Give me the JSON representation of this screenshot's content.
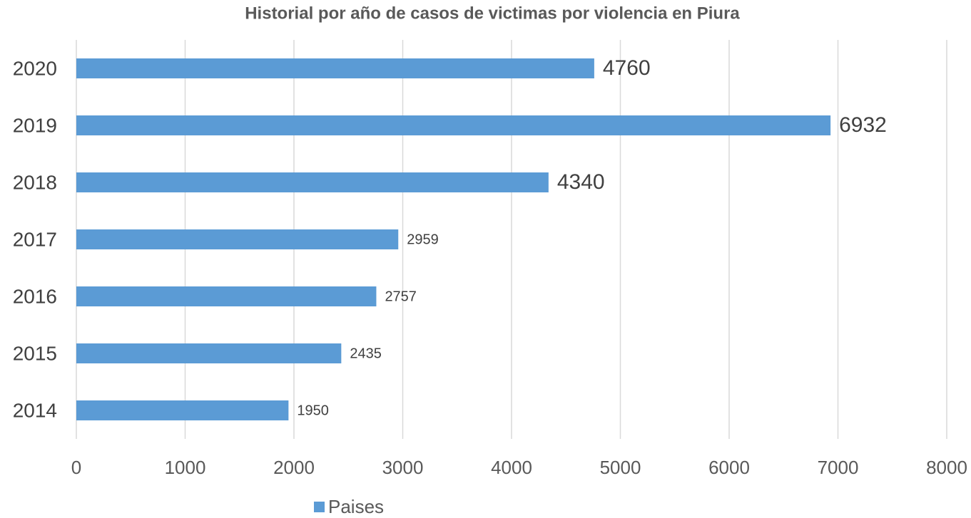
{
  "chart_data": {
    "type": "bar",
    "orientation": "horizontal",
    "title": "Historial por año de casos de victimas por violencia en Piura",
    "categories": [
      "2014",
      "2015",
      "2016",
      "2017",
      "2018",
      "2019",
      "2020"
    ],
    "series": [
      {
        "name": "Paises",
        "color": "#5b9bd5",
        "values": [
          1950,
          2435,
          2757,
          2959,
          4340,
          6932,
          4760
        ]
      }
    ],
    "xlim": [
      0,
      8000
    ],
    "xticks": [
      0,
      1000,
      2000,
      3000,
      4000,
      5000,
      6000,
      7000,
      8000
    ],
    "grid": true,
    "legend": "bottom"
  }
}
